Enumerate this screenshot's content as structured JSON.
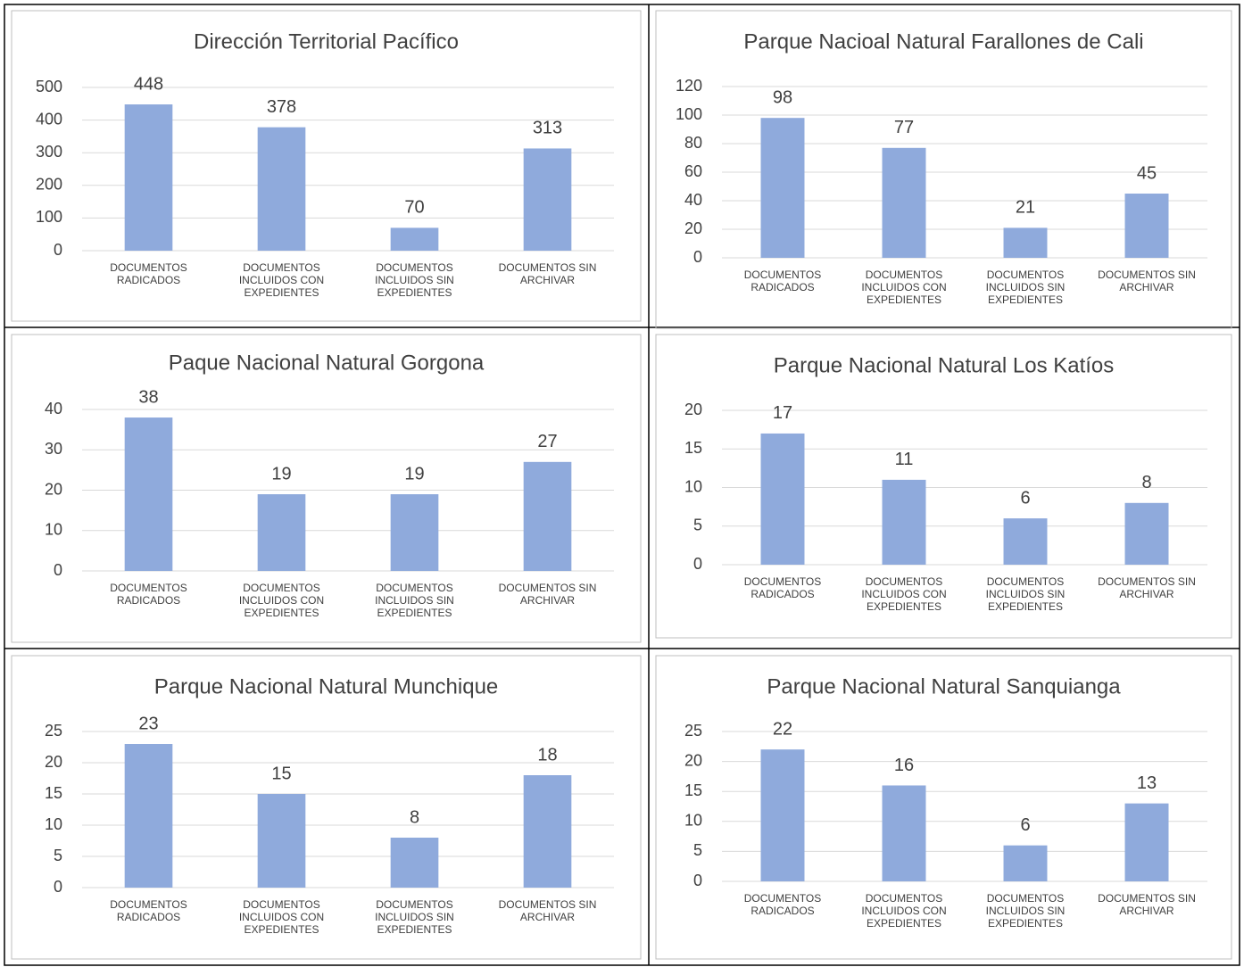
{
  "chart_data": [
    {
      "type": "bar",
      "title": "Dirección Territorial Pacífico",
      "categories": [
        "DOCUMENTOS RADICADOS",
        "DOCUMENTOS INCLUIDOS CON EXPEDIENTES",
        "DOCUMENTOS INCLUIDOS SIN EXPEDIENTES",
        "DOCUMENTOS SIN ARCHIVAR"
      ],
      "values": [
        448,
        378,
        70,
        313
      ],
      "color": "#8faadc",
      "ylim": [
        0,
        500
      ],
      "yticks": [
        0,
        100,
        200,
        300,
        400,
        500
      ],
      "grid": true
    },
    {
      "type": "bar",
      "title": "Parque Nacioal Natural Farallones de Cali",
      "categories": [
        "DOCUMENTOS RADICADOS",
        "DOCUMENTOS INCLUIDOS CON EXPEDIENTES",
        "DOCUMENTOS INCLUIDOS SIN EXPEDIENTES",
        "DOCUMENTOS SIN ARCHIVAR"
      ],
      "values": [
        98,
        77,
        21,
        45
      ],
      "color": "#8faadc",
      "ylim": [
        0,
        120
      ],
      "yticks": [
        0,
        20,
        40,
        60,
        80,
        100,
        120
      ],
      "grid": true
    },
    {
      "type": "bar",
      "title": "Paque Nacional Natural Gorgona",
      "categories": [
        "DOCUMENTOS RADICADOS",
        "DOCUMENTOS INCLUIDOS CON EXPEDIENTES",
        "DOCUMENTOS INCLUIDOS SIN EXPEDIENTES",
        "DOCUMENTOS SIN ARCHIVAR"
      ],
      "values": [
        38,
        19,
        19,
        27
      ],
      "color": "#8faadc",
      "ylim": [
        0,
        40
      ],
      "yticks": [
        0,
        10,
        20,
        30,
        40
      ],
      "grid": true
    },
    {
      "type": "bar",
      "title": "Parque Nacional Natural Los Katíos",
      "categories": [
        "DOCUMENTOS RADICADOS",
        "DOCUMENTOS INCLUIDOS CON EXPEDIENTES",
        "DOCUMENTOS INCLUIDOS SIN EXPEDIENTES",
        "DOCUMENTOS SIN ARCHIVAR"
      ],
      "values": [
        17,
        11,
        6,
        8
      ],
      "color": "#8faadc",
      "ylim": [
        0,
        20
      ],
      "yticks": [
        0,
        5,
        10,
        15,
        20
      ],
      "grid": true
    },
    {
      "type": "bar",
      "title": "Parque Nacional Natural Munchique",
      "categories": [
        "DOCUMENTOS RADICADOS",
        "DOCUMENTOS INCLUIDOS CON EXPEDIENTES",
        "DOCUMENTOS INCLUIDOS SIN EXPEDIENTES",
        "DOCUMENTOS SIN ARCHIVAR"
      ],
      "values": [
        23,
        15,
        8,
        18
      ],
      "color": "#8faadc",
      "ylim": [
        0,
        25
      ],
      "yticks": [
        0,
        5,
        10,
        15,
        20,
        25
      ],
      "grid": true
    },
    {
      "type": "bar",
      "title": "Parque Nacional Natural Sanquianga",
      "categories": [
        "DOCUMENTOS RADICADOS",
        "DOCUMENTOS INCLUIDOS CON EXPEDIENTES",
        "DOCUMENTOS INCLUIDOS SIN EXPEDIENTES",
        "DOCUMENTOS SIN ARCHIVAR"
      ],
      "values": [
        22,
        16,
        6,
        13
      ],
      "color": "#8faadc",
      "ylim": [
        0,
        25
      ],
      "yticks": [
        0,
        5,
        10,
        15,
        20,
        25
      ],
      "grid": true
    }
  ]
}
